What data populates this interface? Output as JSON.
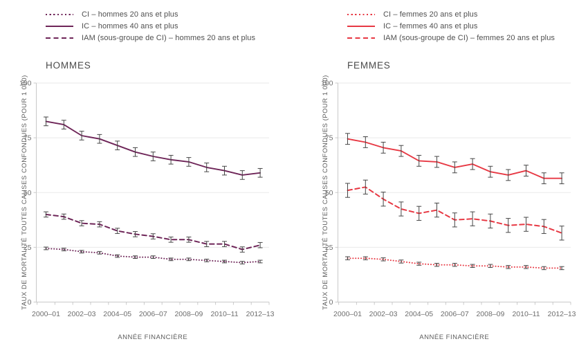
{
  "chart_data": [
    {
      "type": "line",
      "title": "HOMMES",
      "xlabel": "ANNÉE FINANCIÈRE",
      "ylabel": "TAUX DE MORTALITÉ TOUTES CAUSES CONFONDUES (POUR 1 000)",
      "color": "#6e2558",
      "error_bar_color": "#454545",
      "grid": true,
      "legend_position": "top-left",
      "ylim": [
        0,
        100
      ],
      "yticks": [
        0,
        25,
        50,
        75,
        100
      ],
      "x": [
        "2000–01",
        "2001–02",
        "2002–03",
        "2003–04",
        "2004–05",
        "2005–06",
        "2006–07",
        "2007–08",
        "2008–09",
        "2009–10",
        "2010–11",
        "2011–12",
        "2012–13"
      ],
      "xticks_labeled": [
        "2000–01",
        "2002–03",
        "2004–05",
        "2006–07",
        "2008–09",
        "2010–11",
        "2012–13"
      ],
      "series": [
        {
          "name": "CI – hommes 20 ans et plus",
          "line_style": "dotted",
          "error": 0.6,
          "values": [
            24.5,
            24,
            23,
            22.5,
            21,
            20.5,
            20.5,
            19.5,
            19.5,
            19,
            18.5,
            18,
            18.5
          ]
        },
        {
          "name": "IC – hommes 40 ans et plus",
          "line_style": "solid",
          "error": 2,
          "values": [
            82.5,
            81,
            76,
            74.5,
            71.5,
            68.5,
            66.5,
            65,
            64,
            61.5,
            60,
            58,
            59
          ]
        },
        {
          "name": "IAM (sous-groupe de CI) – hommes 20 ans et plus",
          "line_style": "dashed",
          "error": 1.2,
          "values": [
            40,
            39,
            36,
            35.5,
            32.5,
            31,
            30,
            28.5,
            28.5,
            26.5,
            26.5,
            24,
            26
          ]
        }
      ]
    },
    {
      "type": "line",
      "title": "FEMMES",
      "xlabel": "ANNÉE FINANCIÈRE",
      "ylabel": "TAUX DE MORTALITÉ TOUTES CAUSES CONFONDUES (POUR 1 000)",
      "color": "#e73843",
      "error_bar_color": "#454545",
      "grid": true,
      "legend_position": "top-left",
      "ylim": [
        0,
        100
      ],
      "yticks": [
        0,
        25,
        50,
        75,
        100
      ],
      "x": [
        "2000–01",
        "2001–02",
        "2002–03",
        "2003–04",
        "2004–05",
        "2005–06",
        "2006–07",
        "2007–08",
        "2008–09",
        "2009–10",
        "2010–11",
        "2011–12",
        "2012–13"
      ],
      "xticks_labeled": [
        "2000–01",
        "2002–03",
        "2004–05",
        "2006–07",
        "2008–09",
        "2010–11",
        "2012–13"
      ],
      "series": [
        {
          "name": "CI – femmes 20 ans et plus",
          "line_style": "dotted",
          "error": 0.7,
          "values": [
            20,
            20,
            19.5,
            18.5,
            17.5,
            17,
            17,
            16.5,
            16.5,
            16,
            16,
            15.5,
            15.5
          ]
        },
        {
          "name": "IC – femmes 40 ans et plus",
          "line_style": "solid",
          "error": 2.5,
          "values": [
            74.5,
            73,
            70.5,
            69,
            64.5,
            64,
            61.5,
            63,
            59.5,
            58,
            60,
            56.5,
            56.5
          ]
        },
        {
          "name": "IAM (sous-groupe de CI) – femmes 20 ans et plus",
          "line_style": "dashed",
          "error": 3.2,
          "values": [
            51,
            52.5,
            47,
            42.5,
            40.5,
            42,
            37.5,
            38,
            37,
            35,
            35.5,
            34.5,
            31.5
          ]
        }
      ]
    }
  ]
}
